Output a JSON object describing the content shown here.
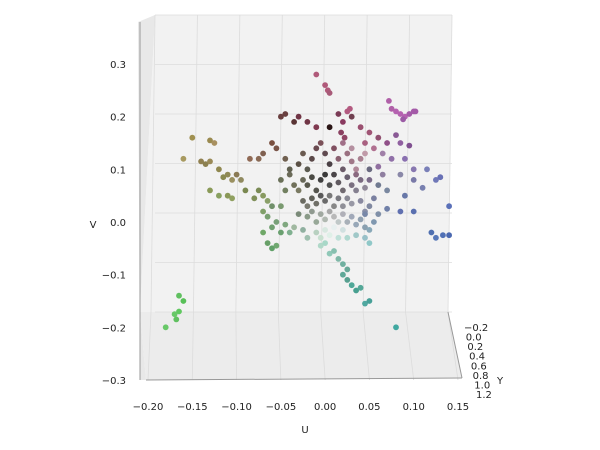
{
  "chart_data": {
    "type": "scatter",
    "projection": "3d",
    "title": "",
    "xlabel": "U",
    "ylabel": "V",
    "zlabel": "Y",
    "x_ticks": [
      "−0.20",
      "−0.15",
      "−0.10",
      "−0.05",
      "0.00",
      "0.05",
      "0.10",
      "0.15"
    ],
    "v_ticks": [
      "0.3",
      "0.2",
      "0.1",
      "0.0",
      "−0.1",
      "−0.2",
      "−0.3"
    ],
    "y_ticks": [
      "−0.2",
      "0.0",
      "0.2",
      "0.4",
      "0.6",
      "0.8",
      "1.0",
      "1.2"
    ],
    "xlim": [
      -0.2,
      0.15
    ],
    "vlim": [
      -0.3,
      0.3
    ],
    "ylim": [
      -0.2,
      1.2
    ],
    "grid": true,
    "legend": "none",
    "points": [
      {
        "u": -0.01,
        "v": 0.28,
        "c": "#b05a7a"
      },
      {
        "u": 0.0,
        "v": 0.26,
        "c": "#b05a7a"
      },
      {
        "u": 0.003,
        "v": 0.25,
        "c": "#b05a7a"
      },
      {
        "u": 0.005,
        "v": 0.245,
        "c": "#a85a78"
      },
      {
        "u": 0.025,
        "v": 0.21,
        "c": "#b35a80"
      },
      {
        "u": 0.028,
        "v": 0.215,
        "c": "#b35a80"
      },
      {
        "u": 0.072,
        "v": 0.23,
        "c": "#b060a8"
      },
      {
        "u": 0.075,
        "v": 0.215,
        "c": "#b060a8"
      },
      {
        "u": 0.08,
        "v": 0.21,
        "c": "#b562b0"
      },
      {
        "u": 0.085,
        "v": 0.205,
        "c": "#b562b0"
      },
      {
        "u": 0.09,
        "v": 0.2,
        "c": "#b562b0"
      },
      {
        "u": 0.095,
        "v": 0.205,
        "c": "#a45aa8"
      },
      {
        "u": 0.1,
        "v": 0.21,
        "c": "#a45aa8"
      },
      {
        "u": 0.102,
        "v": 0.21,
        "c": "#a45aa8"
      },
      {
        "u": 0.088,
        "v": 0.195,
        "c": "#9b5ba5"
      },
      {
        "u": -0.05,
        "v": 0.2,
        "c": "#6a4040"
      },
      {
        "u": -0.045,
        "v": 0.205,
        "c": "#6a4040"
      },
      {
        "u": -0.035,
        "v": 0.19,
        "c": "#5a3535"
      },
      {
        "u": -0.03,
        "v": 0.2,
        "c": "#703545"
      },
      {
        "u": -0.02,
        "v": 0.19,
        "c": "#703545"
      },
      {
        "u": -0.01,
        "v": 0.18,
        "c": "#803a50"
      },
      {
        "u": 0.005,
        "v": 0.18,
        "c": "#2a1515"
      },
      {
        "u": 0.015,
        "v": 0.205,
        "c": "#7a3b55"
      },
      {
        "u": 0.02,
        "v": 0.19,
        "c": "#8a3a60"
      },
      {
        "u": 0.018,
        "v": 0.17,
        "c": "#8a4060"
      },
      {
        "u": 0.022,
        "v": 0.16,
        "c": "#904565"
      },
      {
        "u": 0.03,
        "v": 0.2,
        "c": "#704050"
      },
      {
        "u": 0.04,
        "v": 0.18,
        "c": "#9a5070"
      },
      {
        "u": 0.045,
        "v": 0.15,
        "c": "#a86080"
      },
      {
        "u": 0.05,
        "v": 0.17,
        "c": "#a05575"
      },
      {
        "u": 0.06,
        "v": 0.16,
        "c": "#905070"
      },
      {
        "u": 0.055,
        "v": 0.14,
        "c": "#b07090"
      },
      {
        "u": 0.07,
        "v": 0.15,
        "c": "#905088"
      },
      {
        "u": 0.08,
        "v": 0.165,
        "c": "#8a5a95"
      },
      {
        "u": 0.085,
        "v": 0.15,
        "c": "#9060a0"
      },
      {
        "u": 0.095,
        "v": 0.145,
        "c": "#805090"
      },
      {
        "u": 0.075,
        "v": 0.12,
        "c": "#9070a8"
      },
      {
        "u": 0.09,
        "v": 0.12,
        "c": "#8a70b0"
      },
      {
        "u": 0.1,
        "v": 0.1,
        "c": "#8878b0"
      },
      {
        "u": 0.115,
        "v": 0.1,
        "c": "#7a80b8"
      },
      {
        "u": 0.125,
        "v": 0.08,
        "c": "#7078b8"
      },
      {
        "u": 0.13,
        "v": 0.085,
        "c": "#6870b5"
      },
      {
        "u": 0.1,
        "v": 0.08,
        "c": "#7a7aa8"
      },
      {
        "u": 0.11,
        "v": 0.065,
        "c": "#7880b0"
      },
      {
        "u": 0.085,
        "v": 0.09,
        "c": "#8a88a8"
      },
      {
        "u": 0.065,
        "v": 0.09,
        "c": "#8f7fa0"
      },
      {
        "u": 0.05,
        "v": 0.1,
        "c": "#6a6a80"
      },
      {
        "u": 0.06,
        "v": 0.07,
        "c": "#707a90"
      },
      {
        "u": 0.07,
        "v": 0.06,
        "c": "#7a88a0"
      },
      {
        "u": 0.09,
        "v": 0.05,
        "c": "#6878a8"
      },
      {
        "u": 0.085,
        "v": 0.02,
        "c": "#6070b0"
      },
      {
        "u": 0.1,
        "v": 0.02,
        "c": "#5a70b0"
      },
      {
        "u": 0.14,
        "v": 0.03,
        "c": "#5a70b8"
      },
      {
        "u": 0.12,
        "v": -0.02,
        "c": "#5070b0"
      },
      {
        "u": 0.125,
        "v": -0.03,
        "c": "#5878b8"
      },
      {
        "u": 0.133,
        "v": -0.025,
        "c": "#5070b5"
      },
      {
        "u": 0.14,
        "v": -0.025,
        "c": "#4a68b0"
      },
      {
        "u": -0.15,
        "v": 0.16,
        "c": "#a09050"
      },
      {
        "u": -0.13,
        "v": 0.155,
        "c": "#9a8a50"
      },
      {
        "u": -0.125,
        "v": 0.15,
        "c": "#a89060"
      },
      {
        "u": -0.16,
        "v": 0.12,
        "c": "#a89a60"
      },
      {
        "u": -0.14,
        "v": 0.115,
        "c": "#908050"
      },
      {
        "u": -0.135,
        "v": 0.11,
        "c": "#8c8050"
      },
      {
        "u": -0.13,
        "v": 0.115,
        "c": "#9a8a58"
      },
      {
        "u": -0.12,
        "v": 0.1,
        "c": "#908850"
      },
      {
        "u": -0.115,
        "v": 0.085,
        "c": "#8a8a50"
      },
      {
        "u": -0.11,
        "v": 0.09,
        "c": "#908a55"
      },
      {
        "u": -0.105,
        "v": 0.08,
        "c": "#9a9060"
      },
      {
        "u": -0.1,
        "v": 0.09,
        "c": "#8a7a55"
      },
      {
        "u": -0.095,
        "v": 0.08,
        "c": "#908a60"
      },
      {
        "u": -0.085,
        "v": 0.12,
        "c": "#906a55"
      },
      {
        "u": -0.075,
        "v": 0.12,
        "c": "#8a6a55"
      },
      {
        "u": -0.07,
        "v": 0.13,
        "c": "#806050"
      },
      {
        "u": -0.06,
        "v": 0.15,
        "c": "#7a5040"
      },
      {
        "u": -0.055,
        "v": 0.14,
        "c": "#7a5548"
      },
      {
        "u": -0.045,
        "v": 0.12,
        "c": "#706050"
      },
      {
        "u": -0.13,
        "v": 0.06,
        "c": "#8a9a58"
      },
      {
        "u": -0.12,
        "v": 0.05,
        "c": "#88a060"
      },
      {
        "u": -0.11,
        "v": 0.05,
        "c": "#8a9858"
      },
      {
        "u": -0.105,
        "v": 0.045,
        "c": "#90a060"
      },
      {
        "u": -0.09,
        "v": 0.06,
        "c": "#7a8850"
      },
      {
        "u": -0.08,
        "v": 0.045,
        "c": "#80905a"
      },
      {
        "u": -0.075,
        "v": 0.06,
        "c": "#7a8a55"
      },
      {
        "u": -0.07,
        "v": 0.05,
        "c": "#889a60"
      },
      {
        "u": -0.065,
        "v": 0.04,
        "c": "#8aa068"
      },
      {
        "u": -0.07,
        "v": 0.02,
        "c": "#80a068"
      },
      {
        "u": -0.065,
        "v": 0.01,
        "c": "#78a070"
      },
      {
        "u": -0.06,
        "v": 0.03,
        "c": "#70906a"
      },
      {
        "u": -0.05,
        "v": 0.03,
        "c": "#7a9a70"
      },
      {
        "u": -0.055,
        "v": 0.0,
        "c": "#78a078"
      },
      {
        "u": -0.045,
        "v": -0.005,
        "c": "#80a880"
      },
      {
        "u": -0.06,
        "v": -0.01,
        "c": "#70a070"
      },
      {
        "u": -0.05,
        "v": -0.02,
        "c": "#6aa070"
      },
      {
        "u": -0.04,
        "v": -0.02,
        "c": "#80b090"
      },
      {
        "u": -0.035,
        "v": -0.01,
        "c": "#a0b8a0"
      },
      {
        "u": -0.04,
        "v": 0.09,
        "c": "#6a6a58"
      },
      {
        "u": -0.03,
        "v": 0.11,
        "c": "#5a5045"
      },
      {
        "u": -0.025,
        "v": 0.13,
        "c": "#6a5a50"
      },
      {
        "u": -0.035,
        "v": 0.07,
        "c": "#70705a"
      },
      {
        "u": -0.03,
        "v": 0.06,
        "c": "#7a7a62"
      },
      {
        "u": -0.025,
        "v": 0.08,
        "c": "#686858"
      },
      {
        "u": -0.02,
        "v": 0.1,
        "c": "#5a5a50"
      },
      {
        "u": -0.015,
        "v": 0.12,
        "c": "#5a4848"
      },
      {
        "u": -0.01,
        "v": 0.14,
        "c": "#6a4a50"
      },
      {
        "u": -0.005,
        "v": 0.15,
        "c": "#7a5058"
      },
      {
        "u": 0.0,
        "v": 0.13,
        "c": "#604a50"
      },
      {
        "u": 0.005,
        "v": 0.11,
        "c": "#4a4045"
      },
      {
        "u": 0.01,
        "v": 0.14,
        "c": "#805060"
      },
      {
        "u": 0.015,
        "v": 0.12,
        "c": "#8a6070"
      },
      {
        "u": 0.02,
        "v": 0.1,
        "c": "#6a5a68"
      },
      {
        "u": 0.025,
        "v": 0.13,
        "c": "#9a7080"
      },
      {
        "u": 0.03,
        "v": 0.115,
        "c": "#a07888"
      },
      {
        "u": 0.035,
        "v": 0.1,
        "c": "#b08898"
      },
      {
        "u": 0.04,
        "v": 0.12,
        "c": "#a88090"
      },
      {
        "u": 0.03,
        "v": 0.14,
        "c": "#b490a0"
      },
      {
        "u": 0.02,
        "v": 0.15,
        "c": "#a07088"
      },
      {
        "u": 0.045,
        "v": 0.13,
        "c": "#c09aa8"
      },
      {
        "u": -0.02,
        "v": 0.07,
        "c": "#58584c"
      },
      {
        "u": -0.015,
        "v": 0.085,
        "c": "#4a4a44"
      },
      {
        "u": -0.01,
        "v": 0.06,
        "c": "#55554e"
      },
      {
        "u": -0.005,
        "v": 0.08,
        "c": "#404040"
      },
      {
        "u": 0.0,
        "v": 0.09,
        "c": "#3a3a3a"
      },
      {
        "u": 0.005,
        "v": 0.07,
        "c": "#505050"
      },
      {
        "u": 0.01,
        "v": 0.09,
        "c": "#4a4548"
      },
      {
        "u": 0.015,
        "v": 0.075,
        "c": "#605a60"
      },
      {
        "u": 0.02,
        "v": 0.06,
        "c": "#706a70"
      },
      {
        "u": 0.025,
        "v": 0.085,
        "c": "#6a6070"
      },
      {
        "u": 0.03,
        "v": 0.07,
        "c": "#7a7080"
      },
      {
        "u": 0.035,
        "v": 0.06,
        "c": "#858090"
      },
      {
        "u": 0.04,
        "v": 0.08,
        "c": "#7a6a80"
      },
      {
        "u": 0.045,
        "v": 0.065,
        "c": "#908898"
      },
      {
        "u": -0.025,
        "v": 0.04,
        "c": "#6a6a60"
      },
      {
        "u": -0.02,
        "v": 0.03,
        "c": "#7a7a70"
      },
      {
        "u": -0.015,
        "v": 0.045,
        "c": "#606058"
      },
      {
        "u": -0.01,
        "v": 0.035,
        "c": "#707068"
      },
      {
        "u": -0.005,
        "v": 0.05,
        "c": "#5a5a5a"
      },
      {
        "u": 0.0,
        "v": 0.04,
        "c": "#6a6a6a"
      },
      {
        "u": 0.005,
        "v": 0.05,
        "c": "#787878"
      },
      {
        "u": 0.01,
        "v": 0.03,
        "c": "#888888"
      },
      {
        "u": 0.015,
        "v": 0.045,
        "c": "#7a7a80"
      },
      {
        "u": 0.02,
        "v": 0.03,
        "c": "#909098"
      },
      {
        "u": 0.025,
        "v": 0.045,
        "c": "#8a8a95"
      },
      {
        "u": 0.03,
        "v": 0.035,
        "c": "#9898a5"
      },
      {
        "u": 0.04,
        "v": 0.04,
        "c": "#8a8aa0"
      },
      {
        "u": 0.05,
        "v": 0.03,
        "c": "#8088a0"
      },
      {
        "u": 0.055,
        "v": 0.045,
        "c": "#7a80a0"
      },
      {
        "u": 0.045,
        "v": 0.02,
        "c": "#8a90a8"
      },
      {
        "u": -0.03,
        "v": 0.015,
        "c": "#7a8a78"
      },
      {
        "u": -0.02,
        "v": 0.01,
        "c": "#8a9a88"
      },
      {
        "u": -0.015,
        "v": 0.02,
        "c": "#909a90"
      },
      {
        "u": -0.01,
        "v": 0.0,
        "c": "#98a898"
      },
      {
        "u": -0.005,
        "v": 0.015,
        "c": "#a0a8a0"
      },
      {
        "u": 0.0,
        "v": 0.005,
        "c": "#b0b8b0"
      },
      {
        "u": 0.005,
        "v": 0.02,
        "c": "#a8a8a8"
      },
      {
        "u": 0.01,
        "v": 0.01,
        "c": "#b8b8b8"
      },
      {
        "u": 0.015,
        "v": 0.0,
        "c": "#c0c8c8"
      },
      {
        "u": 0.02,
        "v": 0.015,
        "c": "#b0b0b8"
      },
      {
        "u": 0.025,
        "v": 0.0,
        "c": "#a8b0b8"
      },
      {
        "u": 0.03,
        "v": 0.01,
        "c": "#a0a8b8"
      },
      {
        "u": 0.035,
        "v": -0.005,
        "c": "#98a8b8"
      },
      {
        "u": 0.04,
        "v": 0.005,
        "c": "#90a0b0"
      },
      {
        "u": 0.045,
        "v": -0.01,
        "c": "#8aa0b0"
      },
      {
        "u": 0.055,
        "v": 0.0,
        "c": "#8098b0"
      },
      {
        "u": 0.05,
        "v": -0.015,
        "c": "#88a8b8"
      },
      {
        "u": -0.025,
        "v": -0.015,
        "c": "#90b0a0"
      },
      {
        "u": -0.02,
        "v": -0.03,
        "c": "#a0c0b0"
      },
      {
        "u": -0.01,
        "v": -0.02,
        "c": "#b8d0c0"
      },
      {
        "u": -0.005,
        "v": -0.03,
        "c": "#c8e0d0"
      },
      {
        "u": 0.0,
        "v": -0.015,
        "c": "#d8e8e0"
      },
      {
        "u": 0.005,
        "v": -0.025,
        "c": "#e0f0e8"
      },
      {
        "u": 0.01,
        "v": -0.01,
        "c": "#e8f0f0"
      },
      {
        "u": 0.015,
        "v": -0.03,
        "c": "#c0e0d8"
      },
      {
        "u": 0.02,
        "v": -0.015,
        "c": "#d0e0e0"
      },
      {
        "u": 0.025,
        "v": -0.03,
        "c": "#b0d8d0"
      },
      {
        "u": 0.035,
        "v": -0.025,
        "c": "#a0c8c8"
      },
      {
        "u": 0.045,
        "v": -0.03,
        "c": "#98c0c8"
      },
      {
        "u": 0.05,
        "v": -0.04,
        "c": "#90c8c8"
      },
      {
        "u": -0.005,
        "v": -0.045,
        "c": "#b0d8c8"
      },
      {
        "u": 0.0,
        "v": -0.04,
        "c": "#a8d8c8"
      },
      {
        "u": 0.005,
        "v": -0.06,
        "c": "#90c8b8"
      },
      {
        "u": 0.01,
        "v": -0.055,
        "c": "#88c0b0"
      },
      {
        "u": 0.015,
        "v": -0.07,
        "c": "#80b8a8"
      },
      {
        "u": 0.02,
        "v": -0.08,
        "c": "#70b0a0"
      },
      {
        "u": 0.025,
        "v": -0.09,
        "c": "#68a898"
      },
      {
        "u": 0.02,
        "v": -0.1,
        "c": "#60a898"
      },
      {
        "u": 0.025,
        "v": -0.11,
        "c": "#58a090"
      },
      {
        "u": 0.03,
        "v": -0.12,
        "c": "#50a898"
      },
      {
        "u": 0.035,
        "v": -0.13,
        "c": "#48a090"
      },
      {
        "u": 0.04,
        "v": -0.125,
        "c": "#55a898"
      },
      {
        "u": 0.045,
        "v": -0.155,
        "c": "#50a8a0"
      },
      {
        "u": 0.05,
        "v": -0.15,
        "c": "#48a098"
      },
      {
        "u": 0.08,
        "v": -0.2,
        "c": "#40a8a0"
      },
      {
        "u": -0.07,
        "v": -0.02,
        "c": "#70a868"
      },
      {
        "u": -0.065,
        "v": -0.04,
        "c": "#68a068"
      },
      {
        "u": -0.06,
        "v": -0.05,
        "c": "#60a068"
      },
      {
        "u": -0.055,
        "v": -0.045,
        "c": "#70a870"
      },
      {
        "u": -0.165,
        "v": -0.14,
        "c": "#60c060"
      },
      {
        "u": -0.16,
        "v": -0.15,
        "c": "#58c058"
      },
      {
        "u": -0.165,
        "v": -0.17,
        "c": "#60c860"
      },
      {
        "u": -0.17,
        "v": -0.175,
        "c": "#68c868"
      },
      {
        "u": -0.168,
        "v": -0.185,
        "c": "#60c060"
      },
      {
        "u": -0.18,
        "v": -0.2,
        "c": "#68c868"
      },
      {
        "u": 0.045,
        "v": 0.015,
        "c": "#7888a8"
      },
      {
        "u": 0.06,
        "v": 0.015,
        "c": "#8090a8"
      },
      {
        "u": 0.07,
        "v": 0.025,
        "c": "#7080a8"
      },
      {
        "u": -0.04,
        "v": 0.1,
        "c": "#606050"
      },
      {
        "u": -0.05,
        "v": 0.08,
        "c": "#6a7058"
      },
      {
        "u": -0.045,
        "v": 0.06,
        "c": "#728060"
      },
      {
        "u": 0.035,
        "v": 0.09,
        "c": "#8a6a80"
      },
      {
        "u": 0.05,
        "v": 0.08,
        "c": "#7a6a88"
      },
      {
        "u": 0.06,
        "v": 0.105,
        "c": "#9070a0"
      },
      {
        "u": 0.065,
        "v": 0.13,
        "c": "#a080a8"
      }
    ]
  }
}
